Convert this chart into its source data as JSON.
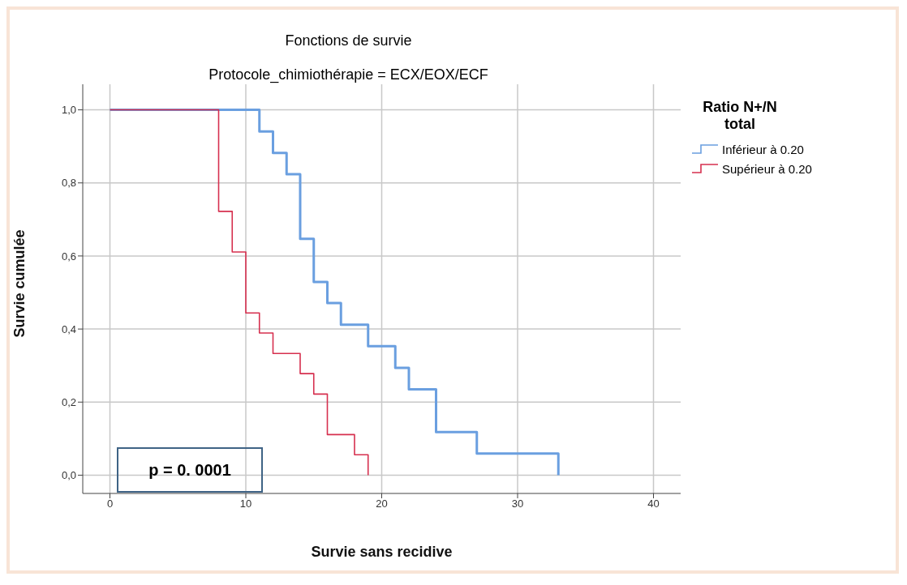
{
  "chart_data": {
    "type": "step",
    "title": "Fonctions de survie",
    "subtitle": "Protocole_chimiothérapie = ECX/EOX/ECF",
    "xlabel": "Survie sans recidive",
    "ylabel": "Survie cumulée",
    "legend_title": "Ratio N+/N total",
    "series": [
      {
        "name": "Inférieur à 0.20",
        "color": "#6a9fe0",
        "x": [
          0,
          11,
          12,
          13,
          14,
          15,
          16,
          17,
          19,
          21,
          22,
          24,
          27,
          33
        ],
        "values": [
          1,
          0.941,
          0.882,
          0.824,
          0.647,
          0.529,
          0.471,
          0.412,
          0.353,
          0.294,
          0.235,
          0.118,
          0.059,
          0
        ]
      },
      {
        "name": "Supérieur à 0.20",
        "color": "#d6304f",
        "x": [
          0,
          8,
          9,
          10,
          11,
          12,
          14,
          15,
          16,
          18,
          19
        ],
        "values": [
          1,
          0.722,
          0.611,
          0.444,
          0.389,
          0.333,
          0.278,
          0.222,
          0.111,
          0.056,
          0
        ]
      }
    ],
    "xlim": [
      -2,
      42
    ],
    "xticks": [
      0,
      10,
      20,
      30,
      40
    ],
    "ylim": [
      -0.05,
      1.07
    ],
    "yticks": [
      {
        "value": 0,
        "label": "0,0"
      },
      {
        "value": 0.2,
        "label": "0,2"
      },
      {
        "value": 0.4,
        "label": "0,4"
      },
      {
        "value": 0.6,
        "label": "0,6"
      },
      {
        "value": 0.8,
        "label": "0,8"
      },
      {
        "value": 1,
        "label": "1,0"
      }
    ],
    "grid": true,
    "legend": "top right",
    "marker": "none",
    "line_style": "solid",
    "annotations": [
      "p = 0. 0001"
    ]
  }
}
